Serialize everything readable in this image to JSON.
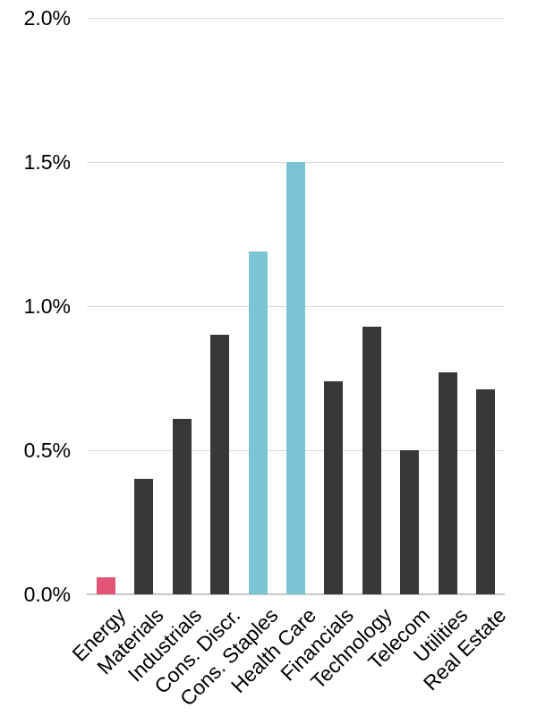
{
  "chart_data": {
    "type": "bar",
    "categories": [
      "Energy",
      "Materials",
      "Industrials",
      "Cons. Discr.",
      "Cons. Staples",
      "Health Care",
      "Financials",
      "Technology",
      "Telecom",
      "Utilities",
      "Real Estate"
    ],
    "values": [
      0.06,
      0.4,
      0.61,
      0.9,
      1.19,
      1.5,
      0.74,
      0.93,
      0.5,
      0.77,
      0.71
    ],
    "value_unit": "%",
    "bar_colors": [
      "#E25576",
      "#383838",
      "#383838",
      "#383838",
      "#7AC4D4",
      "#7AC4D4",
      "#383838",
      "#383838",
      "#383838",
      "#383838",
      "#383838"
    ],
    "highlighted_pink": [
      "Energy"
    ],
    "highlighted_blue": [
      "Cons. Staples",
      "Health Care"
    ],
    "title": "",
    "xlabel": "",
    "ylabel": "",
    "ylim": [
      0,
      2.0
    ],
    "ytick_values": [
      0,
      0.5,
      1.0,
      1.5,
      2.0
    ],
    "ytick_labels": [
      "0.0%",
      "0.5%",
      "1.0%",
      "1.5%",
      "2.0%"
    ],
    "grid": true,
    "legend": false,
    "x_tick_rotation_deg": 45
  },
  "colors": {
    "bar_default": "#383838",
    "bar_pink": "#E25576",
    "bar_blue": "#7AC4D4",
    "gridline": "#D9D9D9",
    "axis_line": "#C6C6C6",
    "text": "#000000",
    "background": "#FFFFFF"
  }
}
